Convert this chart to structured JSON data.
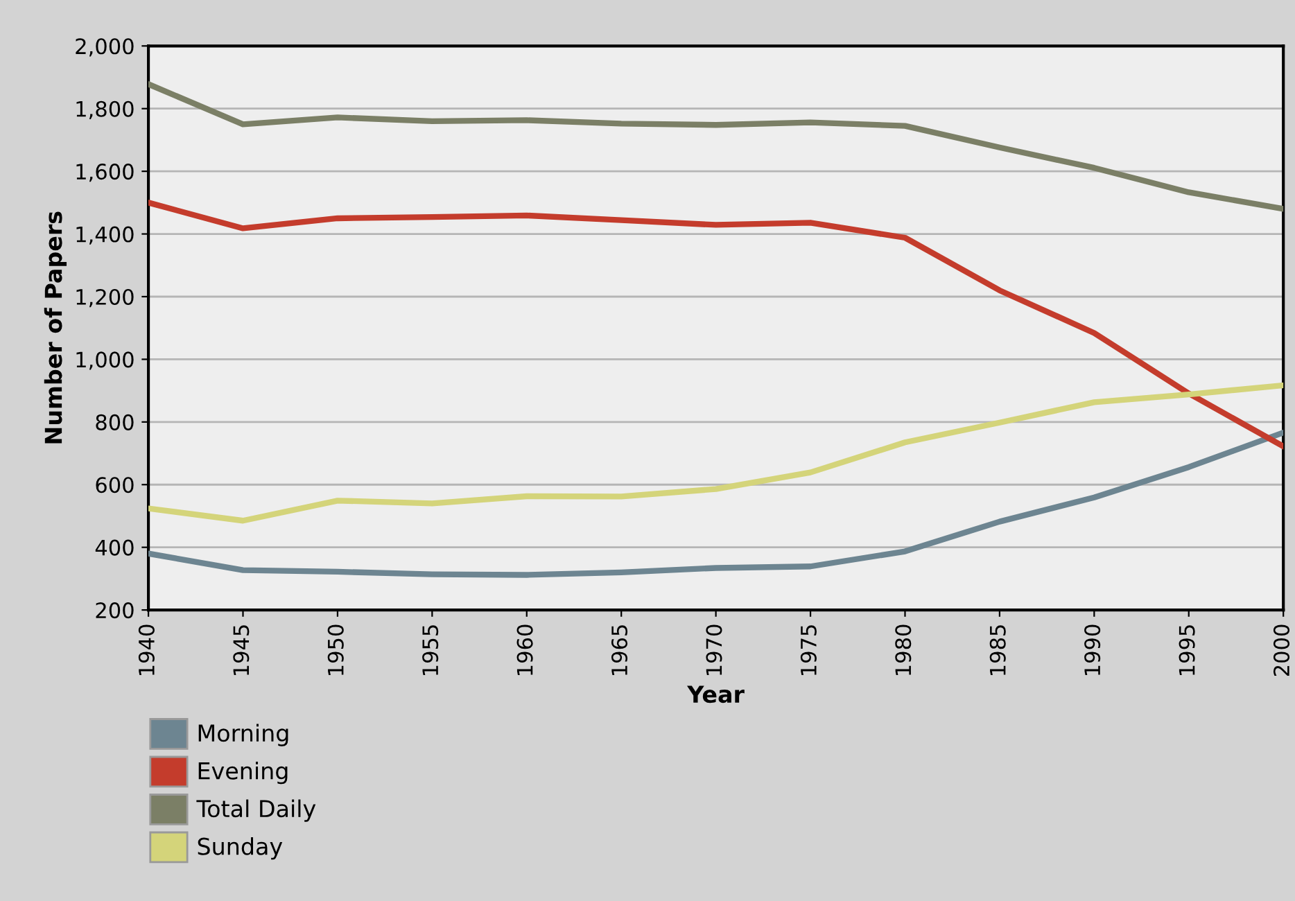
{
  "chart_data": {
    "type": "line",
    "xlabel": "Year",
    "ylabel": "Number of Papers",
    "x": [
      1940,
      1945,
      1950,
      1955,
      1960,
      1965,
      1970,
      1975,
      1980,
      1985,
      1990,
      1995,
      2000
    ],
    "xlim": [
      1940,
      2000
    ],
    "xticks": [
      1940,
      1945,
      1950,
      1955,
      1960,
      1965,
      1970,
      1975,
      1980,
      1985,
      1990,
      1995,
      2000
    ],
    "ylim": [
      200,
      2000
    ],
    "yticks": [
      {
        "value": 200,
        "label": "200"
      },
      {
        "value": 400,
        "label": "400"
      },
      {
        "value": 600,
        "label": "600"
      },
      {
        "value": 800,
        "label": "800"
      },
      {
        "value": 1000,
        "label": "1,000"
      },
      {
        "value": 1200,
        "label": "1,200"
      },
      {
        "value": 1400,
        "label": "1,400"
      },
      {
        "value": 1600,
        "label": "1,600"
      },
      {
        "value": 1800,
        "label": "1,800"
      },
      {
        "value": 2000,
        "label": "2,000"
      }
    ],
    "grid": "y",
    "legend": "bottom left",
    "marker": "none",
    "line_style": "solid",
    "series": [
      {
        "name": "Morning",
        "color": "#6d8591",
        "values": [
          380,
          327,
          322,
          314,
          312,
          320,
          334,
          339,
          387,
          482,
          559,
          656,
          766
        ]
      },
      {
        "name": "Evening",
        "color": "#c43c2c",
        "values": [
          1500,
          1418,
          1450,
          1454,
          1459,
          1444,
          1429,
          1436,
          1388,
          1220,
          1084,
          891,
          722
        ]
      },
      {
        "name": "Total Daily",
        "color": "#7b7f66",
        "values": [
          1878,
          1750,
          1772,
          1760,
          1763,
          1752,
          1748,
          1756,
          1745,
          1676,
          1611,
          1533,
          1480
        ]
      },
      {
        "name": "Sunday",
        "color": "#d4d47a",
        "values": [
          524,
          485,
          549,
          540,
          563,
          562,
          586,
          639,
          735,
          798,
          863,
          888,
          917
        ]
      }
    ]
  }
}
